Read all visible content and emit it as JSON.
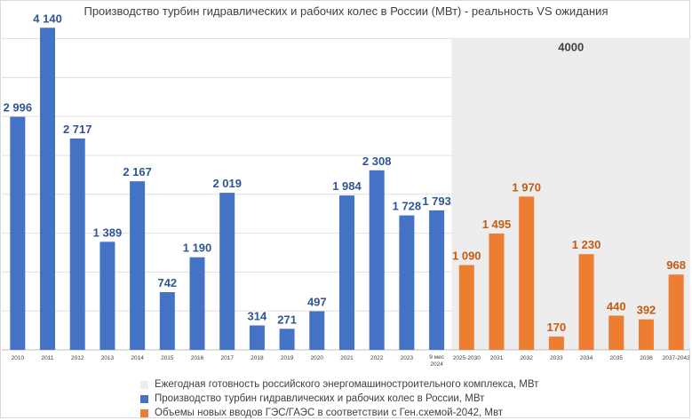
{
  "chart_data": {
    "type": "bar",
    "title": "Производство турбин гидравлических  и рабочих колес в России (МВт) - реальность VS ожидания",
    "xlabel": "",
    "ylabel": "",
    "ylim": [
      0,
      4200
    ],
    "grid": true,
    "legend_position": "bottom",
    "categories": [
      "2010",
      "2011",
      "2012",
      "2013",
      "2014",
      "2015",
      "2016",
      "2017",
      "2018",
      "2019",
      "2020",
      "2021",
      "2022",
      "2023",
      "9 мес 2024",
      "2025-2030",
      "2031",
      "2032",
      "2033",
      "2034",
      "2035",
      "2036",
      "2037-2042"
    ],
    "series": [
      {
        "name": "Производство турбин гидравлических и рабочих колес в России, МВт",
        "color": "#4472c4",
        "values": [
          2996,
          4140,
          2717,
          1389,
          2167,
          742,
          1190,
          2019,
          314,
          271,
          497,
          1984,
          2308,
          1728,
          1793,
          null,
          null,
          null,
          null,
          null,
          null,
          null,
          null
        ],
        "labels": [
          "2 996",
          "4 140",
          "2 717",
          "1 389",
          "2 167",
          "742",
          "1 190",
          "2 019",
          "314",
          "271",
          "497",
          "1 984",
          "2 308",
          "1 728",
          "1 793",
          "",
          "",
          "",
          "",
          "",
          "",
          "",
          ""
        ]
      },
      {
        "name": "Объемы новых вводов ГЭС/ГАЭС в соответствии  с Ген.схемой-2042,  Мвт",
        "color": "#ed7d31",
        "values": [
          null,
          null,
          null,
          null,
          null,
          null,
          null,
          null,
          null,
          null,
          null,
          null,
          null,
          null,
          null,
          1090,
          1495,
          1970,
          170,
          1230,
          440,
          392,
          968
        ],
        "labels": [
          "",
          "",
          "",
          "",
          "",
          "",
          "",
          "",
          "",
          "",
          "",
          "",
          "",
          "",
          "",
          "1 090",
          "1 495",
          "1 970",
          "170",
          "1 230",
          "440",
          "392",
          "968"
        ]
      }
    ],
    "capacity_band": {
      "name": "Ежегодная готовность российского энергомашиностроительного  комплекса, МВт",
      "color": "#ededed",
      "value": 4000,
      "label": "4000",
      "from_category": "2025-2030",
      "to_category": "2037-2042"
    }
  }
}
